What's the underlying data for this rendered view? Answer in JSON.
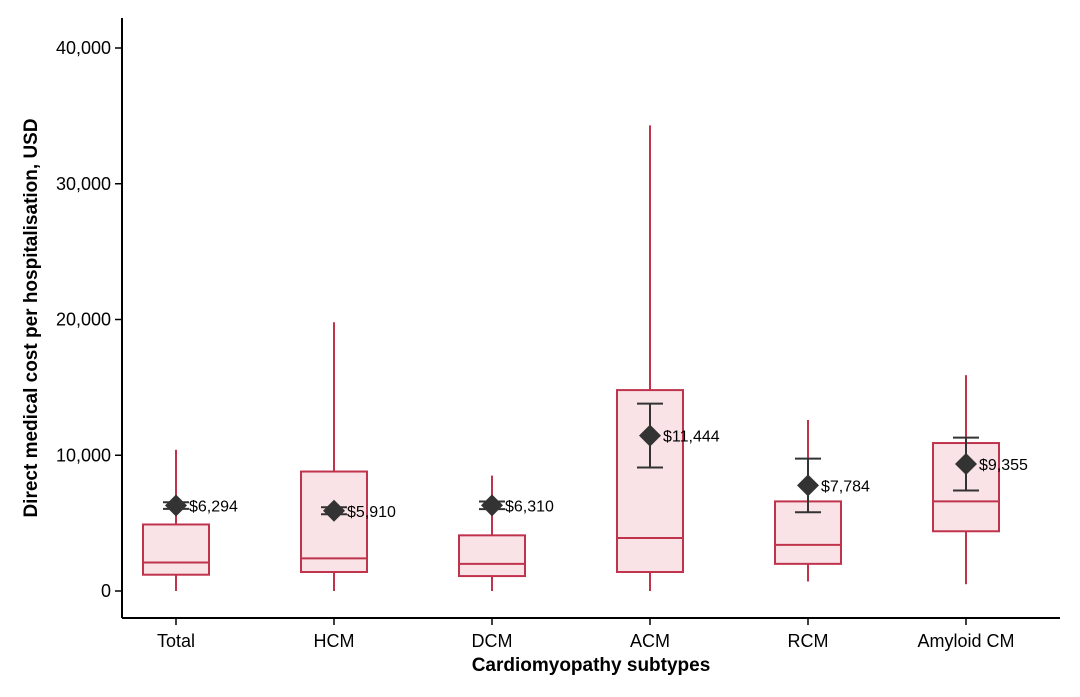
{
  "chart_data": {
    "type": "box",
    "title": "",
    "xlabel": "Cardiomyopathy subtypes",
    "ylabel": "Direct medical cost per hospitalisation, USD",
    "ylim": [
      -2000,
      42000
    ],
    "yticks": [
      0,
      10000,
      20000,
      30000,
      40000
    ],
    "ytick_labels": [
      "0",
      "10,000",
      "20,000",
      "30,000",
      "40,000"
    ],
    "grid": false,
    "colors": {
      "box_stroke": "#c0334d",
      "box_fill": "#f9e3e7",
      "mean_marker": "#333333",
      "axis": "#000000"
    },
    "categories": [
      "Total",
      "HCM",
      "DCM",
      "ACM",
      "RCM",
      "Amyloid CM"
    ],
    "boxes": [
      {
        "category": "Total",
        "whisker_low": 0,
        "q1": 1200,
        "median": 2100,
        "q3": 4900,
        "whisker_high": 10400,
        "mean": 6294,
        "ci_low": 6050,
        "ci_high": 6540,
        "mean_label": "$6,294"
      },
      {
        "category": "HCM",
        "whisker_low": 0,
        "q1": 1400,
        "median": 2400,
        "q3": 8800,
        "whisker_high": 19800,
        "mean": 5910,
        "ci_low": 5650,
        "ci_high": 6170,
        "mean_label": "$5,910"
      },
      {
        "category": "DCM",
        "whisker_low": 0,
        "q1": 1100,
        "median": 2000,
        "q3": 4100,
        "whisker_high": 8500,
        "mean": 6310,
        "ci_low": 6030,
        "ci_high": 6590,
        "mean_label": "$6,310"
      },
      {
        "category": "ACM",
        "whisker_low": 0,
        "q1": 1400,
        "median": 3900,
        "q3": 14800,
        "whisker_high": 34300,
        "mean": 11444,
        "ci_low": 9100,
        "ci_high": 13800,
        "mean_label": "$11,444"
      },
      {
        "category": "RCM",
        "whisker_low": 700,
        "q1": 2000,
        "median": 3400,
        "q3": 6600,
        "whisker_high": 12600,
        "mean": 7784,
        "ci_low": 5800,
        "ci_high": 9750,
        "mean_label": "$7,784"
      },
      {
        "category": "Amyloid CM",
        "whisker_low": 500,
        "q1": 4400,
        "median": 6600,
        "q3": 10900,
        "whisker_high": 15900,
        "mean": 9355,
        "ci_low": 7400,
        "ci_high": 11300,
        "mean_label": "$9,355"
      }
    ]
  }
}
